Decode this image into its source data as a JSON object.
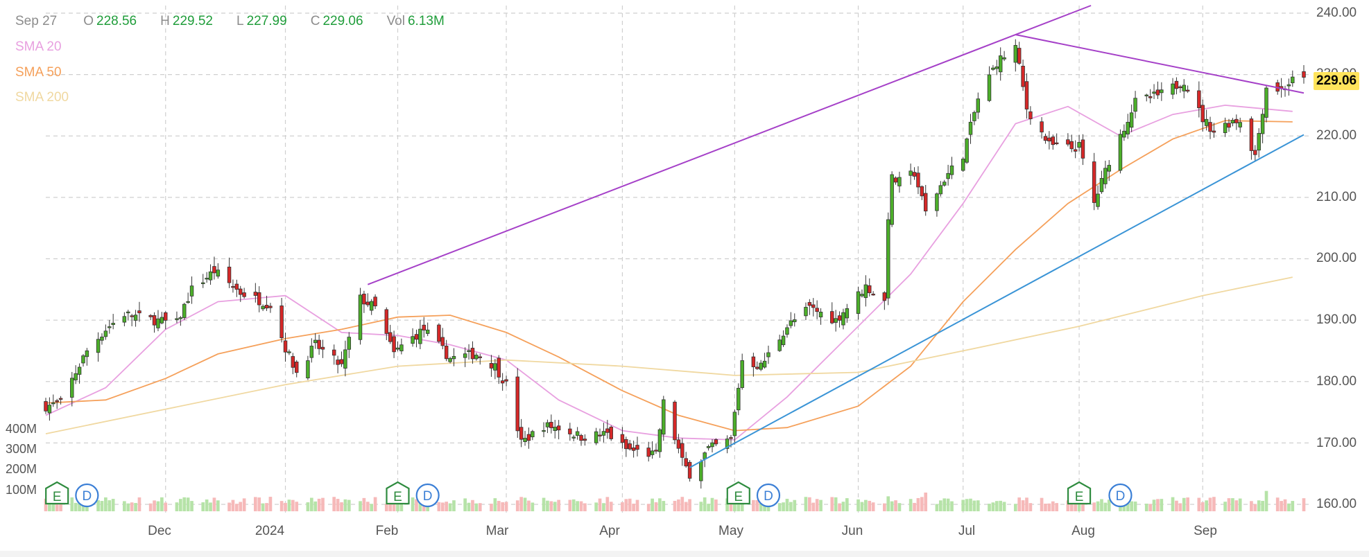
{
  "header": {
    "date": "Sep 27",
    "open_label": "O",
    "open": "228.56",
    "high_label": "H",
    "high": "229.52",
    "low_label": "L",
    "low": "227.99",
    "close_label": "C",
    "close": "229.06",
    "vol_label": "Vol",
    "vol": "6.13M"
  },
  "legend": [
    {
      "label": "SMA 20",
      "color": "#e8a0e0"
    },
    {
      "label": "SMA 50",
      "color": "#f5a05a"
    },
    {
      "label": "SMA 200",
      "color": "#f0d8a0"
    }
  ],
  "last_price": "229.06",
  "volume_axis_labels": [
    "400M",
    "300M",
    "200M",
    "100M"
  ],
  "earnings_marker": "E",
  "dividend_marker": "D",
  "colors": {
    "up": "#4caf2a",
    "down": "#d62828",
    "up_volume": "#b6e3a8",
    "down_volume": "#f6b9b9",
    "trend_upper": "#a540c8",
    "trend_lower": "#3a94d6",
    "marker": "#2e8b3e",
    "dividend": "#3b7fd6",
    "last_price_bg": "#ffe45c"
  },
  "chart_data": {
    "type": "candlestick",
    "y_ticks": [
      "240.00",
      "230.00",
      "220.00",
      "210.00",
      "200.00",
      "190.00",
      "180.00",
      "170.00",
      "160.00"
    ],
    "y_values": [
      240,
      230,
      220,
      210,
      200,
      190,
      180,
      170,
      160
    ],
    "ylim": [
      159,
      242
    ],
    "x_ticks": [
      "Dec",
      "2024",
      "Feb",
      "Mar",
      "Apr",
      "May",
      "Jun",
      "Jul",
      "Aug",
      "Sep"
    ],
    "x_tick_dates": [
      "2023-12-01",
      "2024-01-02",
      "2024-02-01",
      "2024-03-01",
      "2024-04-01",
      "2024-05-01",
      "2024-06-03",
      "2024-07-01",
      "2024-08-01",
      "2024-09-03"
    ],
    "x_range": [
      "2023-10-30",
      "2024-09-30"
    ],
    "price_anchors": [
      [
        "2023-10-30",
        176.0
      ],
      [
        "2023-11-03",
        176.5
      ],
      [
        "2023-11-07",
        181.5
      ],
      [
        "2023-11-10",
        185.0
      ],
      [
        "2023-11-15",
        188.5
      ],
      [
        "2023-11-20",
        191.0
      ],
      [
        "2023-11-28",
        190.0
      ],
      [
        "2023-12-04",
        189.5
      ],
      [
        "2023-12-08",
        195.0
      ],
      [
        "2023-12-14",
        198.0
      ],
      [
        "2023-12-21",
        194.5
      ],
      [
        "2023-12-29",
        192.5
      ],
      [
        "2024-01-02",
        185.5
      ],
      [
        "2024-01-05",
        181.5
      ],
      [
        "2024-01-10",
        186.0
      ],
      [
        "2024-01-17",
        182.5
      ],
      [
        "2024-01-22",
        193.5
      ],
      [
        "2024-01-26",
        192.0
      ],
      [
        "2024-01-31",
        184.5
      ],
      [
        "2024-02-02",
        185.8
      ],
      [
        "2024-02-08",
        188.5
      ],
      [
        "2024-02-15",
        183.8
      ],
      [
        "2024-02-22",
        184.5
      ],
      [
        "2024-02-27",
        182.5
      ],
      [
        "2024-03-01",
        179.5
      ],
      [
        "2024-03-05",
        170.0
      ],
      [
        "2024-03-11",
        172.8
      ],
      [
        "2024-03-15",
        172.5
      ],
      [
        "2024-03-21",
        171.0
      ],
      [
        "2024-03-28",
        171.5
      ],
      [
        "2024-04-02",
        169.0
      ],
      [
        "2024-04-10",
        168.0
      ],
      [
        "2024-04-12",
        176.5
      ],
      [
        "2024-04-17",
        167.0
      ],
      [
        "2024-04-19",
        165.0
      ],
      [
        "2024-04-24",
        169.0
      ],
      [
        "2024-04-30",
        170.5
      ],
      [
        "2024-05-03",
        183.5
      ],
      [
        "2024-05-08",
        182.5
      ],
      [
        "2024-05-15",
        189.0
      ],
      [
        "2024-05-21",
        192.0
      ],
      [
        "2024-05-28",
        190.0
      ],
      [
        "2024-06-05",
        195.5
      ],
      [
        "2024-06-10",
        193.0
      ],
      [
        "2024-06-11",
        207.0
      ],
      [
        "2024-06-12",
        213.0
      ],
      [
        "2024-06-14",
        212.5
      ],
      [
        "2024-06-18",
        214.0
      ],
      [
        "2024-06-21",
        207.5
      ],
      [
        "2024-06-26",
        213.0
      ],
      [
        "2024-07-01",
        217.0
      ],
      [
        "2024-07-05",
        226.0
      ],
      [
        "2024-07-10",
        232.0
      ],
      [
        "2024-07-15",
        234.5
      ],
      [
        "2024-07-18",
        224.5
      ],
      [
        "2024-07-24",
        218.5
      ],
      [
        "2024-07-30",
        218.0
      ],
      [
        "2024-08-01",
        218.3
      ],
      [
        "2024-08-05",
        209.0
      ],
      [
        "2024-08-09",
        216.0
      ],
      [
        "2024-08-16",
        225.5
      ],
      [
        "2024-08-23",
        226.8
      ],
      [
        "2024-08-29",
        229.0
      ],
      [
        "2024-09-03",
        222.8
      ],
      [
        "2024-09-06",
        220.8
      ],
      [
        "2024-09-11",
        222.5
      ],
      [
        "2024-09-13",
        222.5
      ],
      [
        "2024-09-17",
        216.8
      ],
      [
        "2024-09-20",
        228.0
      ],
      [
        "2024-09-24",
        227.5
      ],
      [
        "2024-09-27",
        229.06
      ]
    ],
    "series": [
      {
        "name": "SMA 20",
        "type": "line",
        "points": [
          [
            "2023-10-30",
            174.5
          ],
          [
            "2023-11-15",
            179.0
          ],
          [
            "2023-12-01",
            188.5
          ],
          [
            "2023-12-15",
            193.0
          ],
          [
            "2024-01-02",
            194.0
          ],
          [
            "2024-01-17",
            188.0
          ],
          [
            "2024-02-01",
            187.5
          ],
          [
            "2024-02-15",
            186.0
          ],
          [
            "2024-03-01",
            183.5
          ],
          [
            "2024-03-15",
            177.0
          ],
          [
            "2024-04-01",
            172.0
          ],
          [
            "2024-04-16",
            170.8
          ],
          [
            "2024-05-01",
            170.5
          ],
          [
            "2024-05-15",
            177.5
          ],
          [
            "2024-06-03",
            189.0
          ],
          [
            "2024-06-17",
            197.5
          ],
          [
            "2024-07-01",
            209.0
          ],
          [
            "2024-07-15",
            222.0
          ],
          [
            "2024-07-29",
            224.8
          ],
          [
            "2024-08-12",
            220.0
          ],
          [
            "2024-08-26",
            223.5
          ],
          [
            "2024-09-09",
            225.0
          ],
          [
            "2024-09-27",
            224.0
          ]
        ]
      },
      {
        "name": "SMA 50",
        "type": "line",
        "points": [
          [
            "2023-10-30",
            176.5
          ],
          [
            "2023-11-15",
            177.0
          ],
          [
            "2023-12-01",
            180.5
          ],
          [
            "2023-12-15",
            184.5
          ],
          [
            "2024-01-02",
            187.0
          ],
          [
            "2024-01-17",
            188.5
          ],
          [
            "2024-02-01",
            190.5
          ],
          [
            "2024-02-15",
            190.8
          ],
          [
            "2024-03-01",
            188.0
          ],
          [
            "2024-03-15",
            184.0
          ],
          [
            "2024-04-01",
            178.5
          ],
          [
            "2024-04-16",
            174.5
          ],
          [
            "2024-05-01",
            172.0
          ],
          [
            "2024-05-15",
            172.5
          ],
          [
            "2024-06-03",
            176.0
          ],
          [
            "2024-06-17",
            182.5
          ],
          [
            "2024-07-01",
            193.0
          ],
          [
            "2024-07-15",
            201.5
          ],
          [
            "2024-07-29",
            209.0
          ],
          [
            "2024-08-12",
            214.5
          ],
          [
            "2024-08-26",
            219.5
          ],
          [
            "2024-09-09",
            222.5
          ],
          [
            "2024-09-27",
            222.3
          ]
        ]
      },
      {
        "name": "SMA 200",
        "type": "line",
        "points": [
          [
            "2023-10-30",
            171.5
          ],
          [
            "2023-12-01",
            175.5
          ],
          [
            "2024-01-02",
            179.5
          ],
          [
            "2024-02-01",
            182.5
          ],
          [
            "2024-03-01",
            183.5
          ],
          [
            "2024-04-01",
            182.5
          ],
          [
            "2024-05-01",
            181.0
          ],
          [
            "2024-06-03",
            181.5
          ],
          [
            "2024-07-01",
            185.0
          ],
          [
            "2024-08-01",
            189.0
          ],
          [
            "2024-09-03",
            194.0
          ],
          [
            "2024-09-27",
            197.0
          ]
        ]
      }
    ],
    "trendlines": [
      {
        "from": [
          "2024-01-24",
          195.8
        ],
        "to": [
          "2024-07-15",
          236.5
        ]
      },
      {
        "from": [
          "2024-07-15",
          236.5
        ],
        "to": [
          "2024-09-30",
          227.0
        ]
      },
      {
        "from": [
          "2024-04-19",
          166.0
        ],
        "to": [
          "2024-09-30",
          220.2
        ]
      }
    ],
    "earnings_dates": [
      "2023-11-02",
      "2024-02-01",
      "2024-05-02",
      "2024-08-01"
    ],
    "dividend_dates": [
      "2023-11-10",
      "2024-02-09",
      "2024-05-10",
      "2024-08-12"
    ],
    "volume_spikes": [
      [
        "2024-06-11",
        72
      ],
      [
        "2024-06-21",
        90
      ],
      [
        "2024-09-20",
        98
      ]
    ]
  }
}
